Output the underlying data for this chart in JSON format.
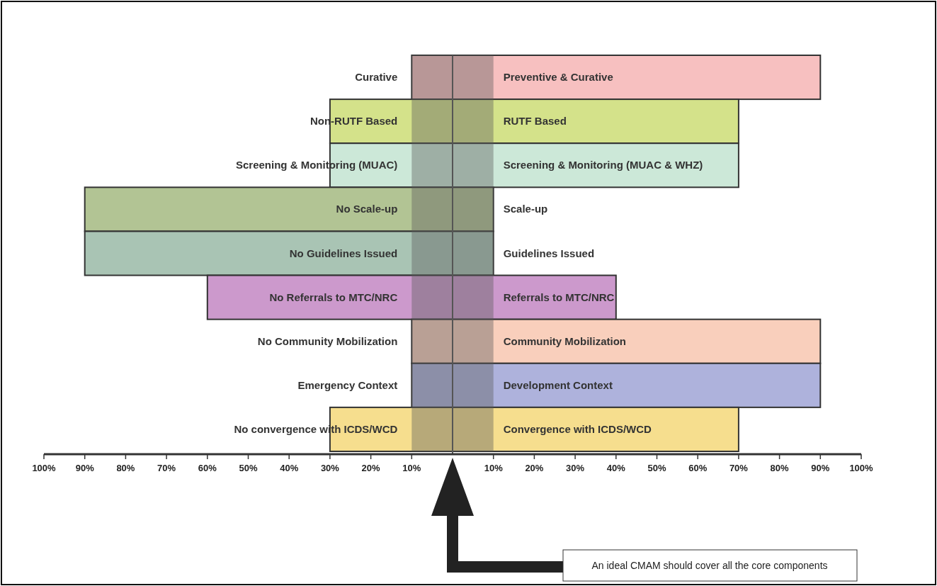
{
  "chart_data": {
    "type": "bar",
    "orientation": "horizontal",
    "stacked": true,
    "categories": [
      null,
      null,
      null,
      null,
      null,
      null,
      null,
      null,
      null
    ],
    "series": [
      {
        "colors": [
          "#f7c0c0",
          "#d4e28a",
          "#cce8d8",
          "#b2c494",
          "#a9c4b4",
          "#cc99cc",
          "#f9cfbc",
          "#aeb2dc",
          "#f6de8e"
        ],
        "values": [
          -10,
          -30,
          -30,
          -90,
          -90,
          -60,
          -10,
          -10,
          -30
        ],
        "value_labels": [
          "Curative",
          "Non-RUTF Based",
          "Screening & Monitoring (MUAC)",
          "No Scale-up",
          "No Guidelines Issued",
          "No Referrals to MTC/NRC",
          "No Community Mobilization",
          "Emergency Context",
          "No convergence with ICDS/WCD"
        ]
      },
      {
        "colors": [
          "#f7c0c0",
          "#d4e28a",
          "#cce8d8",
          "#b2c494",
          "#a9c4b4",
          "#cc99cc",
          "#f9cfbc",
          "#aeb2dc",
          "#f6de8e"
        ],
        "values": [
          90,
          70,
          70,
          10,
          10,
          40,
          90,
          90,
          70
        ],
        "value_labels": [
          "Preventive & Curative",
          "RUTF Based",
          "Screening & Monitoring (MUAC & WHZ)",
          "Scale-up",
          "Guidelines Issued",
          "Referrals to MTC/NRC",
          "Community Mobilization",
          "Development Context",
          "Convergence with ICDS/WCD"
        ]
      }
    ],
    "xlim": [
      -100,
      100
    ],
    "xticks": [
      {
        "value": -100,
        "label": "100%"
      },
      {
        "value": -90,
        "label": "90%"
      },
      {
        "value": -80,
        "label": "80%"
      },
      {
        "value": -70,
        "label": "70%"
      },
      {
        "value": -60,
        "label": "60%"
      },
      {
        "value": -50,
        "label": "50%"
      },
      {
        "value": -40,
        "label": "40%"
      },
      {
        "value": -30,
        "label": "30%"
      },
      {
        "value": -20,
        "label": "20%"
      },
      {
        "value": -10,
        "label": "10%"
      },
      {
        "value": 10,
        "label": "10%"
      },
      {
        "value": 20,
        "label": "20%"
      },
      {
        "value": 30,
        "label": "30%"
      },
      {
        "value": 40,
        "label": "40%"
      },
      {
        "value": 50,
        "label": "50%"
      },
      {
        "value": 60,
        "label": "60%"
      },
      {
        "value": 70,
        "label": "70%"
      },
      {
        "value": 80,
        "label": "80%"
      },
      {
        "value": 90,
        "label": "90%"
      },
      {
        "value": 100,
        "label": "100%"
      }
    ],
    "bands": [
      {
        "axis": "x",
        "from": -10,
        "to": 10,
        "color": "#5a5a5a"
      }
    ],
    "ref_lines": [
      {
        "axis": "x",
        "value": 0,
        "color": "#555555"
      }
    ],
    "grid": false,
    "annotations": [
      "An ideal CMAM should cover all the core components"
    ]
  }
}
